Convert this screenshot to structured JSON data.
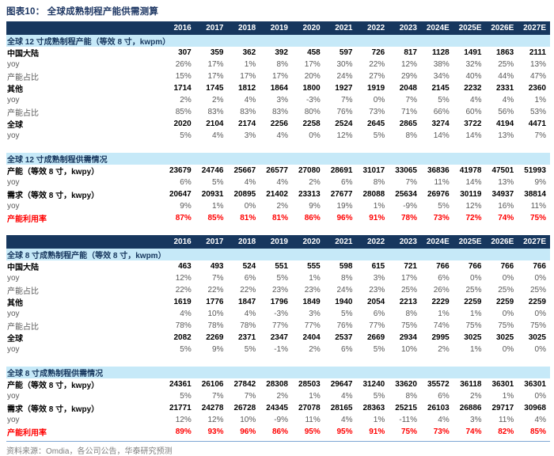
{
  "title": "图表10：  全球成熟制程产能供需测算",
  "footer": "资料来源：Omdia，各公司公告，华泰研究预测",
  "years": [
    "2016",
    "2017",
    "2018",
    "2019",
    "2020",
    "2021",
    "2022",
    "2023",
    "2024E",
    "2025E",
    "2026E",
    "2027E"
  ],
  "colors": {
    "header_bg": "#17375E",
    "band_bg": "#C6E9F8",
    "bold_text": "#000000",
    "plain_text": "#595959",
    "utilization_red": "#FF0000",
    "footer_line": "#7EA6D4",
    "title_navy": "#1F3864"
  },
  "tables": [
    {
      "name": "global-12inch",
      "sections": [
        {
          "header": "全球 12 寸成熟制程产能（等效 8 寸，kwpm）",
          "rows": [
            {
              "label": "中国大陆",
              "style": "bold",
              "values": [
                "307",
                "359",
                "362",
                "392",
                "458",
                "597",
                "726",
                "817",
                "1128",
                "1491",
                "1863",
                "2111"
              ]
            },
            {
              "label": "yoy",
              "style": "plain",
              "values": [
                "26%",
                "17%",
                "1%",
                "8%",
                "17%",
                "30%",
                "22%",
                "12%",
                "38%",
                "32%",
                "25%",
                "13%"
              ]
            },
            {
              "label": "产能占比",
              "style": "plain",
              "values": [
                "15%",
                "17%",
                "17%",
                "17%",
                "20%",
                "24%",
                "27%",
                "29%",
                "34%",
                "40%",
                "44%",
                "47%"
              ]
            },
            {
              "label": "其他",
              "style": "bold",
              "values": [
                "1714",
                "1745",
                "1812",
                "1864",
                "1800",
                "1927",
                "1919",
                "2048",
                "2145",
                "2232",
                "2331",
                "2360"
              ]
            },
            {
              "label": "yoy",
              "style": "plain",
              "values": [
                "2%",
                "2%",
                "4%",
                "3%",
                "-3%",
                "7%",
                "0%",
                "7%",
                "5%",
                "4%",
                "4%",
                "1%"
              ]
            },
            {
              "label": "产能占比",
              "style": "plain",
              "values": [
                "85%",
                "83%",
                "83%",
                "83%",
                "80%",
                "76%",
                "73%",
                "71%",
                "66%",
                "60%",
                "56%",
                "53%"
              ]
            },
            {
              "label": "全球",
              "style": "bold",
              "values": [
                "2020",
                "2104",
                "2174",
                "2256",
                "2258",
                "2524",
                "2645",
                "2865",
                "3274",
                "3722",
                "4194",
                "4471"
              ]
            },
            {
              "label": "yoy",
              "style": "plain",
              "values": [
                "5%",
                "4%",
                "3%",
                "4%",
                "0%",
                "12%",
                "5%",
                "8%",
                "14%",
                "14%",
                "13%",
                "7%"
              ]
            }
          ]
        },
        {
          "header": "全球 12 寸成熟制程供需情况",
          "rows": [
            {
              "label": "产能（等效 8 寸，kwpy）",
              "style": "bold",
              "values": [
                "23679",
                "24746",
                "25667",
                "26577",
                "27080",
                "28691",
                "31017",
                "33065",
                "36836",
                "41978",
                "47501",
                "51993"
              ]
            },
            {
              "label": "yoy",
              "style": "plain",
              "values": [
                "6%",
                "5%",
                "4%",
                "4%",
                "2%",
                "6%",
                "8%",
                "7%",
                "11%",
                "14%",
                "13%",
                "9%"
              ]
            },
            {
              "label": "需求（等效 8 寸，kwpy）",
              "style": "bold",
              "values": [
                "20647",
                "20931",
                "20895",
                "21402",
                "23313",
                "27677",
                "28088",
                "25634",
                "26976",
                "30119",
                "34937",
                "38814"
              ]
            },
            {
              "label": "yoy",
              "style": "plain",
              "values": [
                "9%",
                "1%",
                "0%",
                "2%",
                "9%",
                "19%",
                "1%",
                "-9%",
                "5%",
                "12%",
                "16%",
                "11%"
              ]
            },
            {
              "label": "产能利用率",
              "style": "red",
              "values": [
                "87%",
                "85%",
                "81%",
                "81%",
                "86%",
                "96%",
                "91%",
                "78%",
                "73%",
                "72%",
                "74%",
                "75%"
              ]
            }
          ]
        }
      ]
    },
    {
      "name": "global-8inch",
      "sections": [
        {
          "header": "全球 8 寸成熟制程产能（等效 8 寸，kwpm）",
          "rows": [
            {
              "label": "中国大陆",
              "style": "bold",
              "values": [
                "463",
                "493",
                "524",
                "551",
                "555",
                "598",
                "615",
                "721",
                "766",
                "766",
                "766",
                "766"
              ]
            },
            {
              "label": "yoy",
              "style": "plain",
              "values": [
                "12%",
                "7%",
                "6%",
                "5%",
                "1%",
                "8%",
                "3%",
                "17%",
                "6%",
                "0%",
                "0%",
                "0%"
              ]
            },
            {
              "label": "产能占比",
              "style": "plain",
              "values": [
                "22%",
                "22%",
                "22%",
                "23%",
                "23%",
                "24%",
                "23%",
                "25%",
                "26%",
                "25%",
                "25%",
                "25%"
              ]
            },
            {
              "label": "其他",
              "style": "bold",
              "values": [
                "1619",
                "1776",
                "1847",
                "1796",
                "1849",
                "1940",
                "2054",
                "2213",
                "2229",
                "2259",
                "2259",
                "2259"
              ]
            },
            {
              "label": "yoy",
              "style": "plain",
              "values": [
                "4%",
                "10%",
                "4%",
                "-3%",
                "3%",
                "5%",
                "6%",
                "8%",
                "1%",
                "1%",
                "0%",
                "0%"
              ]
            },
            {
              "label": "产能占比",
              "style": "plain",
              "values": [
                "78%",
                "78%",
                "78%",
                "77%",
                "77%",
                "76%",
                "77%",
                "75%",
                "74%",
                "75%",
                "75%",
                "75%"
              ]
            },
            {
              "label": "全球",
              "style": "bold",
              "values": [
                "2082",
                "2269",
                "2371",
                "2347",
                "2404",
                "2537",
                "2669",
                "2934",
                "2995",
                "3025",
                "3025",
                "3025"
              ]
            },
            {
              "label": "yoy",
              "style": "plain",
              "values": [
                "5%",
                "9%",
                "5%",
                "-1%",
                "2%",
                "6%",
                "5%",
                "10%",
                "2%",
                "1%",
                "0%",
                "0%"
              ]
            }
          ]
        },
        {
          "header": "全球 8 寸成熟制程供需情况",
          "rows": [
            {
              "label": "产能（等效 8 寸，kwpy）",
              "style": "bold",
              "values": [
                "24361",
                "26106",
                "27842",
                "28308",
                "28503",
                "29647",
                "31240",
                "33620",
                "35572",
                "36118",
                "36301",
                "36301"
              ]
            },
            {
              "label": "yoy",
              "style": "plain",
              "values": [
                "5%",
                "7%",
                "7%",
                "2%",
                "1%",
                "4%",
                "5%",
                "8%",
                "6%",
                "2%",
                "1%",
                "0%"
              ]
            },
            {
              "label": "需求（等效 8 寸，kwpy）",
              "style": "bold",
              "values": [
                "21771",
                "24278",
                "26728",
                "24345",
                "27078",
                "28165",
                "28363",
                "25215",
                "26103",
                "26886",
                "29717",
                "30968"
              ]
            },
            {
              "label": "yoy",
              "style": "plain",
              "values": [
                "12%",
                "12%",
                "10%",
                "-9%",
                "11%",
                "4%",
                "1%",
                "-11%",
                "4%",
                "3%",
                "11%",
                "4%"
              ]
            },
            {
              "label": "产能利用率",
              "style": "red",
              "values": [
                "89%",
                "93%",
                "96%",
                "86%",
                "95%",
                "95%",
                "91%",
                "75%",
                "73%",
                "74%",
                "82%",
                "85%"
              ]
            }
          ]
        }
      ]
    }
  ]
}
